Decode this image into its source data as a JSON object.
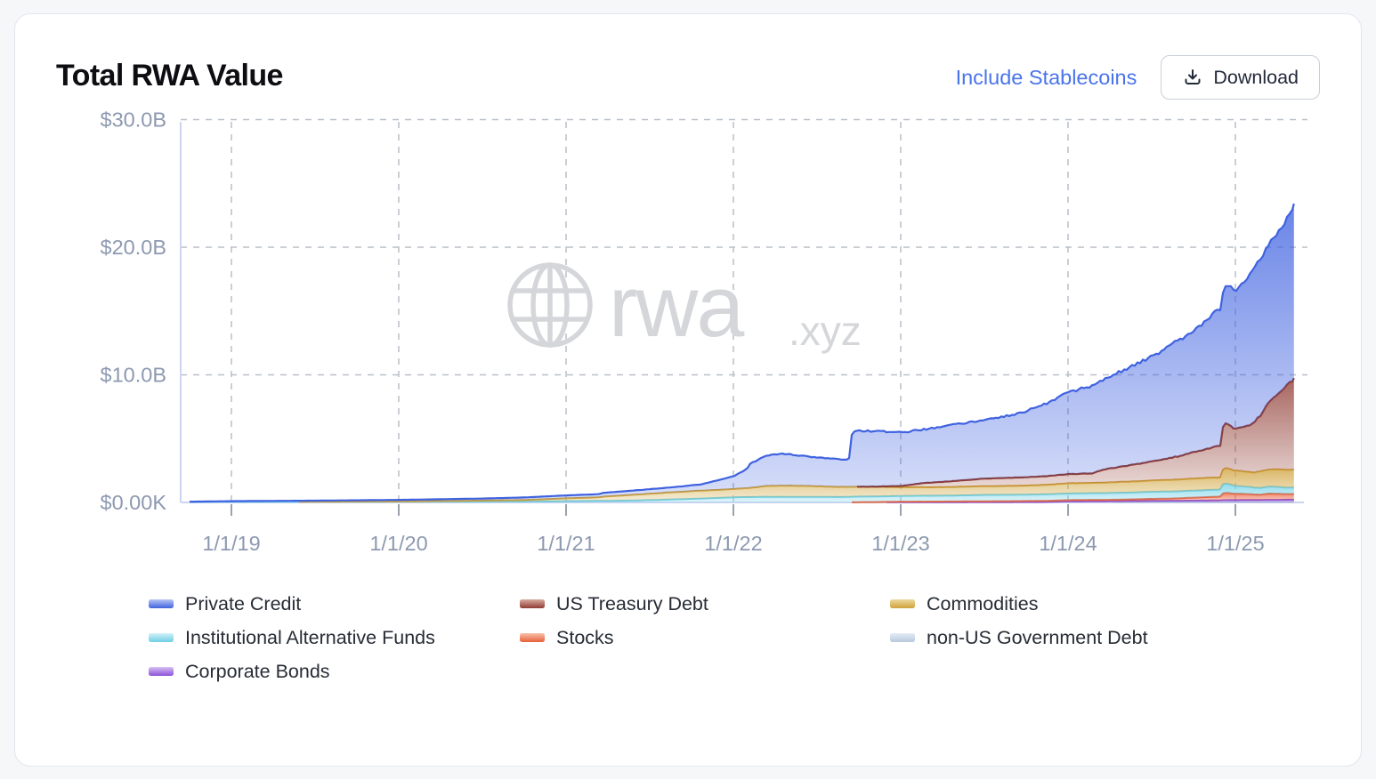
{
  "page": {
    "background": "#f6f7f9",
    "card_background": "#ffffff"
  },
  "header": {
    "title": "Total RWA Value",
    "include_stablecoins_label": "Include Stablecoins",
    "download_label": "Download",
    "accent_color": "#4a74ea"
  },
  "watermark": {
    "brand": "rwa",
    "tld": ".xyz",
    "color": "#d4d6d9"
  },
  "legend": {
    "items": [
      {
        "label": "Private Credit",
        "color": "#3f62e0",
        "color_light": "#b9c6f4"
      },
      {
        "label": "Institutional Alternative Funds",
        "color": "#6ecfe6",
        "color_light": "#d3f1f9"
      },
      {
        "label": "Corporate Bonds",
        "color": "#8a50d8",
        "color_light": "#d8c0f4"
      },
      {
        "label": "US Treasury Debt",
        "color": "#8f3b32",
        "color_light": "#d9aca1"
      },
      {
        "label": "Stocks",
        "color": "#e9603a",
        "color_light": "#f6c3ab"
      },
      {
        "label": "Commodities",
        "color": "#cfa23a",
        "color_light": "#ecd9a0"
      },
      {
        "label": "non-US Government Debt",
        "color": "#b7c9dd",
        "color_light": "#e4edf6"
      }
    ]
  },
  "chart_data": {
    "type": "area",
    "stacked": true,
    "title": "Total RWA Value",
    "unit": "USD billions",
    "grid": "dashed",
    "legend_position": "bottom",
    "y_axis": {
      "range": [
        0,
        30
      ],
      "ticks": [
        {
          "label": "$0.00K",
          "value": 0
        },
        {
          "label": "$10.0B",
          "value": 10
        },
        {
          "label": "$20.0B",
          "value": 20
        },
        {
          "label": "$30.0B",
          "value": 30
        }
      ]
    },
    "x_axis": {
      "range": [
        2018.75,
        2025.35
      ],
      "ticks": [
        {
          "label": "1/1/19",
          "t": 2019
        },
        {
          "label": "1/1/20",
          "t": 2020
        },
        {
          "label": "1/1/21",
          "t": 2021
        },
        {
          "label": "1/1/22",
          "t": 2022
        },
        {
          "label": "1/1/23",
          "t": 2023
        },
        {
          "label": "1/1/24",
          "t": 2024
        },
        {
          "label": "1/1/25",
          "t": 2025
        }
      ]
    },
    "t": [
      2018.75,
      2019.0,
      2019.5,
      2020.0,
      2020.5,
      2020.75,
      2021.0,
      2021.2,
      2021.22,
      2021.4,
      2021.6,
      2021.8,
      2022.0,
      2022.08,
      2022.1,
      2022.2,
      2022.3,
      2022.45,
      2022.6,
      2022.69,
      2022.71,
      2022.85,
      2023.0,
      2023.15,
      2023.3,
      2023.5,
      2023.7,
      2023.85,
      2024.0,
      2024.15,
      2024.2,
      2024.35,
      2024.5,
      2024.65,
      2024.8,
      2024.88,
      2024.91,
      2024.93,
      2024.96,
      2025.0,
      2025.05,
      2025.1,
      2025.15,
      2025.2,
      2025.25,
      2025.3,
      2025.35
    ],
    "series": [
      {
        "key": "non_us_government_debt",
        "name": "non-US Government Debt",
        "color": "#b7c9dd",
        "stroke_width": 1.5,
        "noise": 0.0,
        "values": [
          0,
          0,
          0,
          0,
          0,
          0,
          0,
          0,
          0,
          0,
          0,
          0,
          0,
          0,
          0,
          0,
          0,
          0,
          0,
          0,
          0,
          0,
          0,
          0,
          0,
          0,
          0,
          0,
          0,
          0,
          0,
          0.01,
          0.01,
          0.01,
          0.012,
          0.012,
          0.015,
          0.015,
          0.015,
          0.015,
          0.015,
          0.018,
          0.018,
          0.02,
          0.02,
          0.02,
          0.02
        ]
      },
      {
        "key": "corporate_bonds",
        "name": "Corporate Bonds",
        "color": "#8a50d8",
        "stroke_width": 1.8,
        "noise": 0.01,
        "values": [
          0,
          0,
          0,
          0,
          0,
          0,
          0,
          0,
          0,
          0,
          0,
          0,
          0,
          0,
          0,
          0,
          0,
          0,
          0,
          0,
          0,
          0,
          0.01,
          0.012,
          0.015,
          0.02,
          0.025,
          0.03,
          0.08,
          0.09,
          0.09,
          0.1,
          0.12,
          0.13,
          0.14,
          0.15,
          0.15,
          0.17,
          0.17,
          0.17,
          0.18,
          0.18,
          0.18,
          0.19,
          0.19,
          0.2,
          0.2
        ]
      },
      {
        "key": "stocks",
        "name": "Stocks",
        "color": "#e9603a",
        "stroke_width": 2,
        "noise": 0.06,
        "values": [
          0,
          0,
          0,
          0,
          0,
          0,
          0,
          0,
          0,
          0,
          0,
          0,
          0,
          0,
          0,
          0,
          0,
          0,
          0,
          0,
          0.02,
          0.03,
          0.05,
          0.055,
          0.06,
          0.07,
          0.08,
          0.09,
          0.1,
          0.11,
          0.11,
          0.12,
          0.15,
          0.18,
          0.25,
          0.28,
          0.3,
          0.6,
          0.55,
          0.5,
          0.48,
          0.44,
          0.4,
          0.5,
          0.48,
          0.45,
          0.45
        ]
      },
      {
        "key": "institutional_alternative_funds",
        "name": "Institutional Alternative Funds",
        "color": "#6ecfe6",
        "stroke_width": 2,
        "noise": 0.02,
        "values": [
          0.04,
          0.05,
          0.055,
          0.06,
          0.065,
          0.07,
          0.1,
          0.12,
          0.12,
          0.15,
          0.22,
          0.3,
          0.4,
          0.42,
          0.42,
          0.44,
          0.44,
          0.44,
          0.43,
          0.43,
          0.43,
          0.44,
          0.45,
          0.46,
          0.46,
          0.5,
          0.5,
          0.51,
          0.52,
          0.53,
          0.53,
          0.54,
          0.55,
          0.55,
          0.55,
          0.55,
          0.55,
          0.75,
          0.7,
          0.6,
          0.58,
          0.55,
          0.52,
          0.55,
          0.53,
          0.5,
          0.5
        ]
      },
      {
        "key": "commodities",
        "name": "Commodities",
        "color": "#cfa23a",
        "stroke_width": 2,
        "noise": 0.022,
        "values": [
          0,
          0,
          0.005,
          0.02,
          0.08,
          0.12,
          0.22,
          0.28,
          0.33,
          0.45,
          0.55,
          0.62,
          0.65,
          0.7,
          0.72,
          0.85,
          0.88,
          0.85,
          0.8,
          0.78,
          0.78,
          0.75,
          0.68,
          0.66,
          0.67,
          0.68,
          0.7,
          0.73,
          0.8,
          0.8,
          0.82,
          0.85,
          0.88,
          0.92,
          0.95,
          0.95,
          0.95,
          1.18,
          1.2,
          1.2,
          1.18,
          1.15,
          1.3,
          1.35,
          1.38,
          1.4,
          1.4
        ]
      },
      {
        "key": "us_treasury_debt",
        "name": "US Treasury Debt",
        "color": "#8f3b32",
        "stroke_width": 2.2,
        "noise": 0.035,
        "values": [
          0,
          0,
          0,
          0,
          0,
          0,
          0,
          0,
          0,
          0,
          0,
          0,
          0,
          0,
          0,
          0,
          0,
          0,
          0,
          0,
          0,
          0.02,
          0.1,
          0.35,
          0.45,
          0.6,
          0.65,
          0.68,
          0.72,
          0.75,
          1.0,
          1.25,
          1.5,
          1.8,
          2.2,
          2.4,
          2.5,
          3.6,
          3.4,
          3.3,
          3.5,
          3.8,
          4.4,
          5.2,
          5.8,
          6.5,
          7.1
        ]
      },
      {
        "key": "private_credit",
        "name": "Private Credit",
        "color": "#3f62e0",
        "stroke_width": 2.2,
        "noise": 0.03,
        "values": [
          0.02,
          0.05,
          0.08,
          0.12,
          0.16,
          0.2,
          0.23,
          0.25,
          0.3,
          0.33,
          0.38,
          0.48,
          1.0,
          1.5,
          1.9,
          2.4,
          2.5,
          2.3,
          2.2,
          2.1,
          4.4,
          4.35,
          4.2,
          4.2,
          4.4,
          4.6,
          5.0,
          5.6,
          6.4,
          6.9,
          7.0,
          7.6,
          8.2,
          9.0,
          9.8,
          10.6,
          10.5,
          10.4,
          10.9,
          10.8,
          11.3,
          11.9,
          12.2,
          12.3,
          12.6,
          12.9,
          13.5
        ]
      }
    ]
  }
}
